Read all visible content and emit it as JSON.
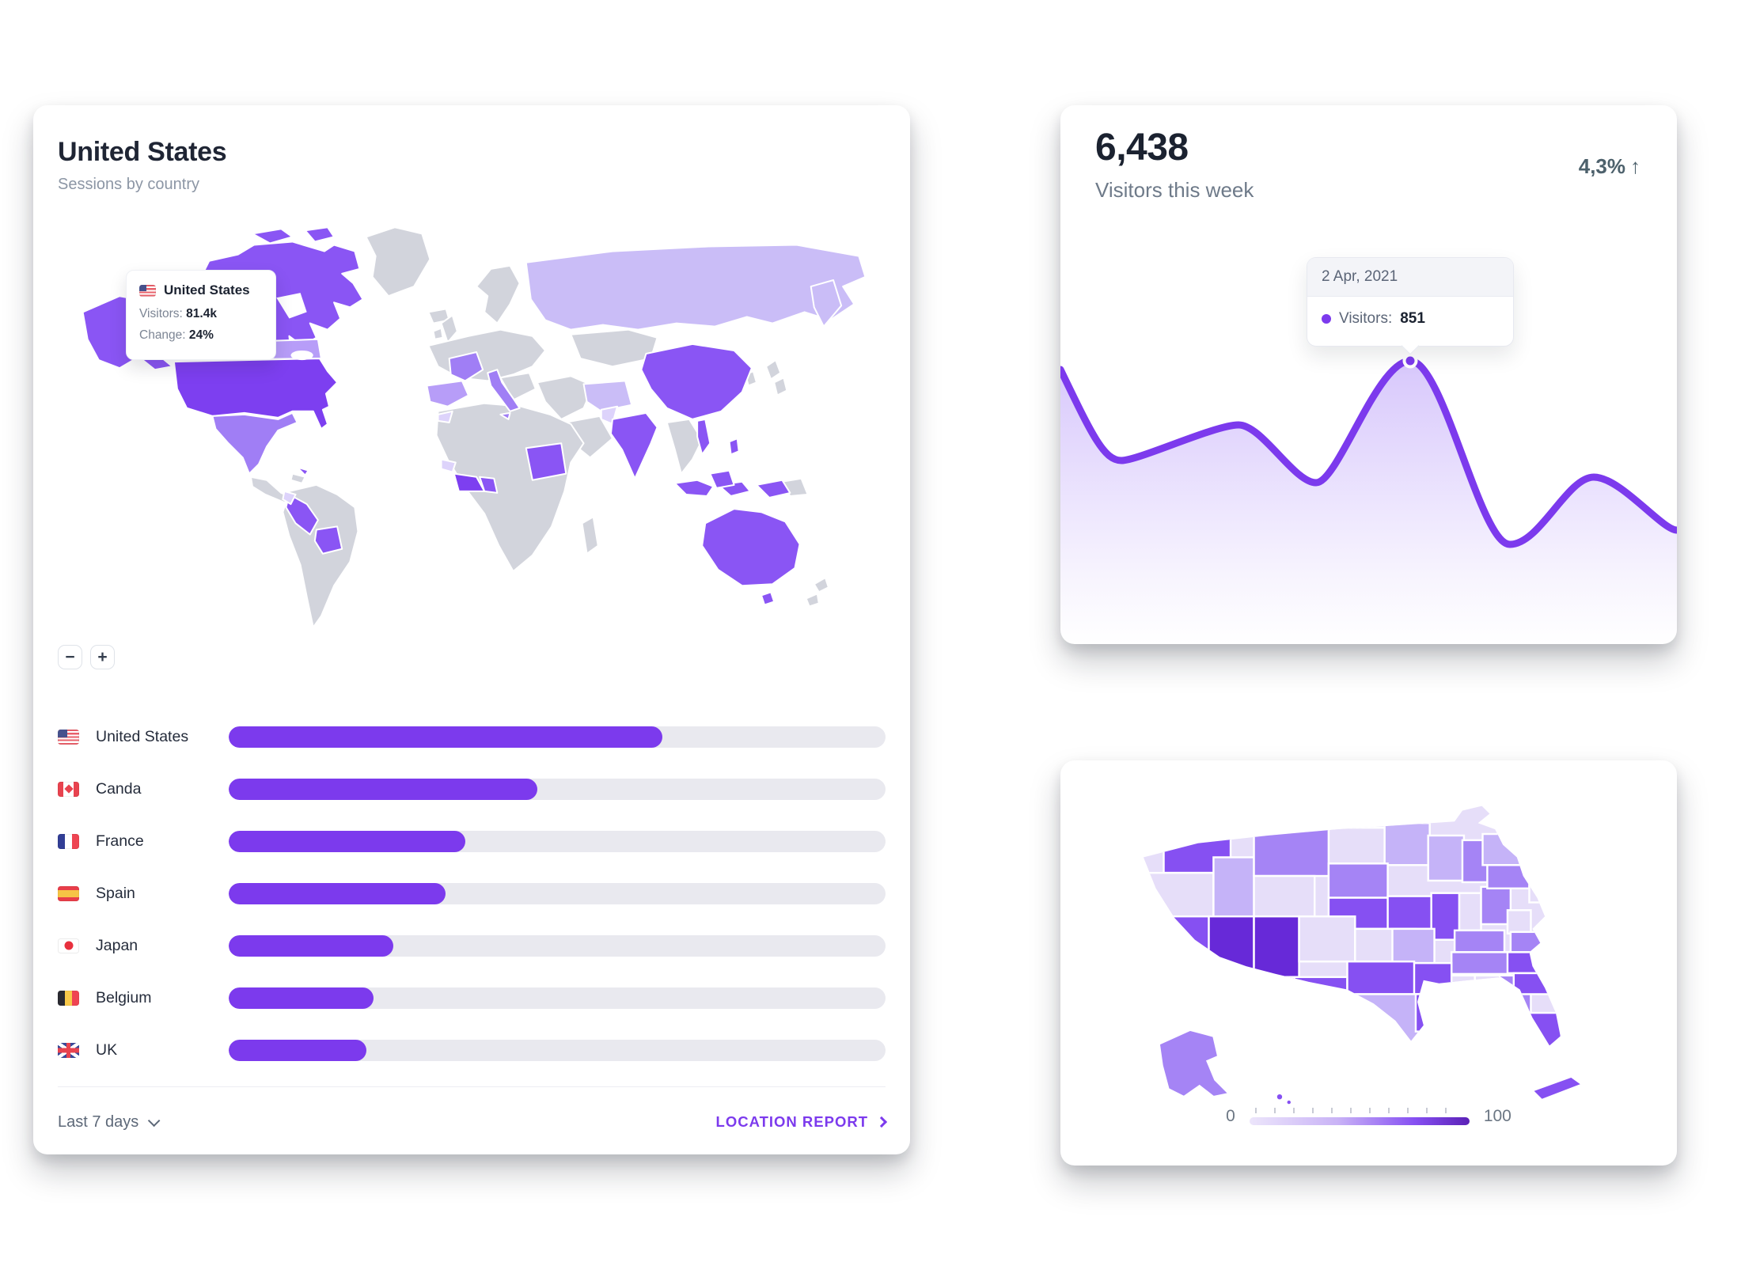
{
  "accent_color": "#7c3aed",
  "left_card": {
    "title": "United States",
    "subtitle": "Sessions by country",
    "map_tooltip": {
      "country": "United States",
      "visitors_label": "Visitors:",
      "visitors_value": "81.4k",
      "change_label": "Change:",
      "change_value": "24%"
    },
    "zoom_controls": {
      "zoom_out": "−",
      "zoom_in": "+"
    },
    "chart_data": {
      "type": "bar",
      "title": "Sessions by country",
      "unit": "percent_of_track",
      "items": [
        {
          "name": "United States",
          "flag": "us",
          "value": 66
        },
        {
          "name": "Canda",
          "flag": "ca",
          "value": 47
        },
        {
          "name": "France",
          "flag": "fr",
          "value": 36
        },
        {
          "name": "Spain",
          "flag": "es",
          "value": 33
        },
        {
          "name": "Japan",
          "flag": "jp",
          "value": 25
        },
        {
          "name": "Belgium",
          "flag": "be",
          "value": 22
        },
        {
          "name": "UK",
          "flag": "uk",
          "value": 21
        }
      ]
    },
    "world_map": {
      "type": "choropleth",
      "region": "world",
      "values": {
        "United States": 95,
        "Alaska": 75,
        "Canada": 75,
        "Canada South": 40,
        "Canada Islands": 75,
        "Mexico": 60,
        "Cuba": 75,
        "Peru": 75,
        "Bolivia": 75,
        "Ecuador": 12,
        "France": 58,
        "Spain": 42,
        "Italy": 58,
        "Russia": 28,
        "Iran": 28,
        "Sudan": 75,
        "Ivory Coast": 92,
        "Ghana": 78,
        "Guinea": 12,
        "Morocco": 12,
        "China": 75,
        "India": 75,
        "Pakistan": 12,
        "Vietnam": 75,
        "Philippines": 75,
        "Indonesia": 75,
        "Papua West": 75,
        "Australia": 75,
        "Tasmania": 75
      }
    },
    "footer": {
      "range_label": "Last 7 days",
      "report_label": "LOCATION REPORT"
    }
  },
  "visitors_card": {
    "value": "6,438",
    "label": "Visitors this week",
    "change": {
      "value": "4,3%",
      "arrow": "↑",
      "direction": "up"
    },
    "tooltip": {
      "date": "2 Apr, 2021",
      "series_label": "Visitors:",
      "value": "851"
    },
    "chart_data": {
      "type": "area",
      "series": [
        {
          "name": "Visitors",
          "values": [
            820,
            490,
            620,
            405,
            851,
            180,
            425,
            230
          ]
        }
      ],
      "highlighted_point": {
        "index": 4,
        "date": "2 Apr, 2021",
        "value": 851
      },
      "line_color": "#7c3aed",
      "legend": "none",
      "grid": "off"
    }
  },
  "us_map_card": {
    "legend": {
      "min": "0",
      "max": "100"
    },
    "chart_data": {
      "type": "choropleth",
      "region": "USA",
      "scale": {
        "min": 0,
        "max": 100
      },
      "states": {
        "WA": 78,
        "OR": 12,
        "CA": 78,
        "ID": 34,
        "NV": 95,
        "MT": 55,
        "WY": 12,
        "UT": 95,
        "AZ": 78,
        "CO": 12,
        "NM": 78,
        "ND": 12,
        "SD": 55,
        "NE": 78,
        "KS": 12,
        "OK": 78,
        "TX": 34,
        "MN": 34,
        "IA": 78,
        "MO": 34,
        "AR": 78,
        "LA": 78,
        "WI": 34,
        "IL": 78,
        "IN": 12,
        "OH": 55,
        "MI": 55,
        "KY": 55,
        "TN": 55,
        "MS": 12,
        "AL": 12,
        "GA": 55,
        "FL": 78,
        "WV": 12,
        "VA": 55,
        "NC": 78,
        "SC": 78,
        "PA": 55,
        "NY": 34,
        "ME": 55,
        "VT": 34,
        "MA": 78,
        "CT": 34,
        "NJ": 12,
        "AK": 55,
        "HI": 78,
        "ISL": 78
      }
    }
  }
}
